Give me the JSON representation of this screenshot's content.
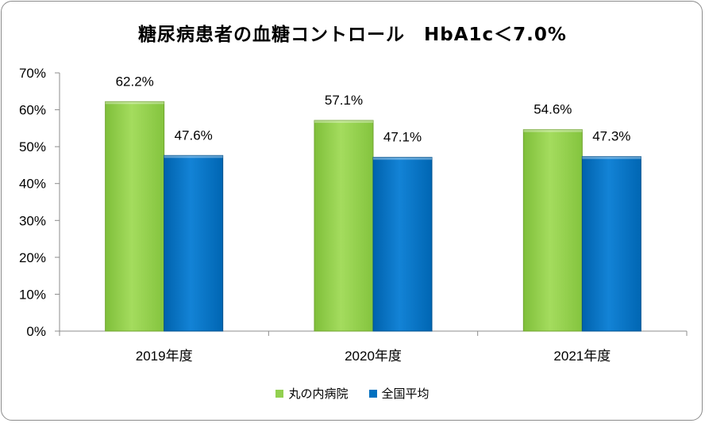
{
  "chart_data": {
    "type": "bar",
    "title": "糖尿病患者の血糖コントロール　HbA1c＜7.0%",
    "categories": [
      "2019年度",
      "2020年度",
      "2021年度"
    ],
    "series": [
      {
        "name": "丸の内病院",
        "values": [
          62.2,
          57.1,
          54.6
        ],
        "labels": [
          "62.2%",
          "57.1%",
          "54.6%"
        ],
        "color": "#92d050"
      },
      {
        "name": "全国平均",
        "values": [
          47.6,
          47.1,
          47.3
        ],
        "labels": [
          "47.6%",
          "47.1%",
          "47.3%"
        ],
        "color": "#0070c0"
      }
    ],
    "ylim": [
      0,
      70
    ],
    "yticks": [
      "0%",
      "10%",
      "20%",
      "30%",
      "40%",
      "50%",
      "60%",
      "70%"
    ],
    "xlabel": "",
    "ylabel": "",
    "grid": false,
    "legend": "bottom"
  }
}
